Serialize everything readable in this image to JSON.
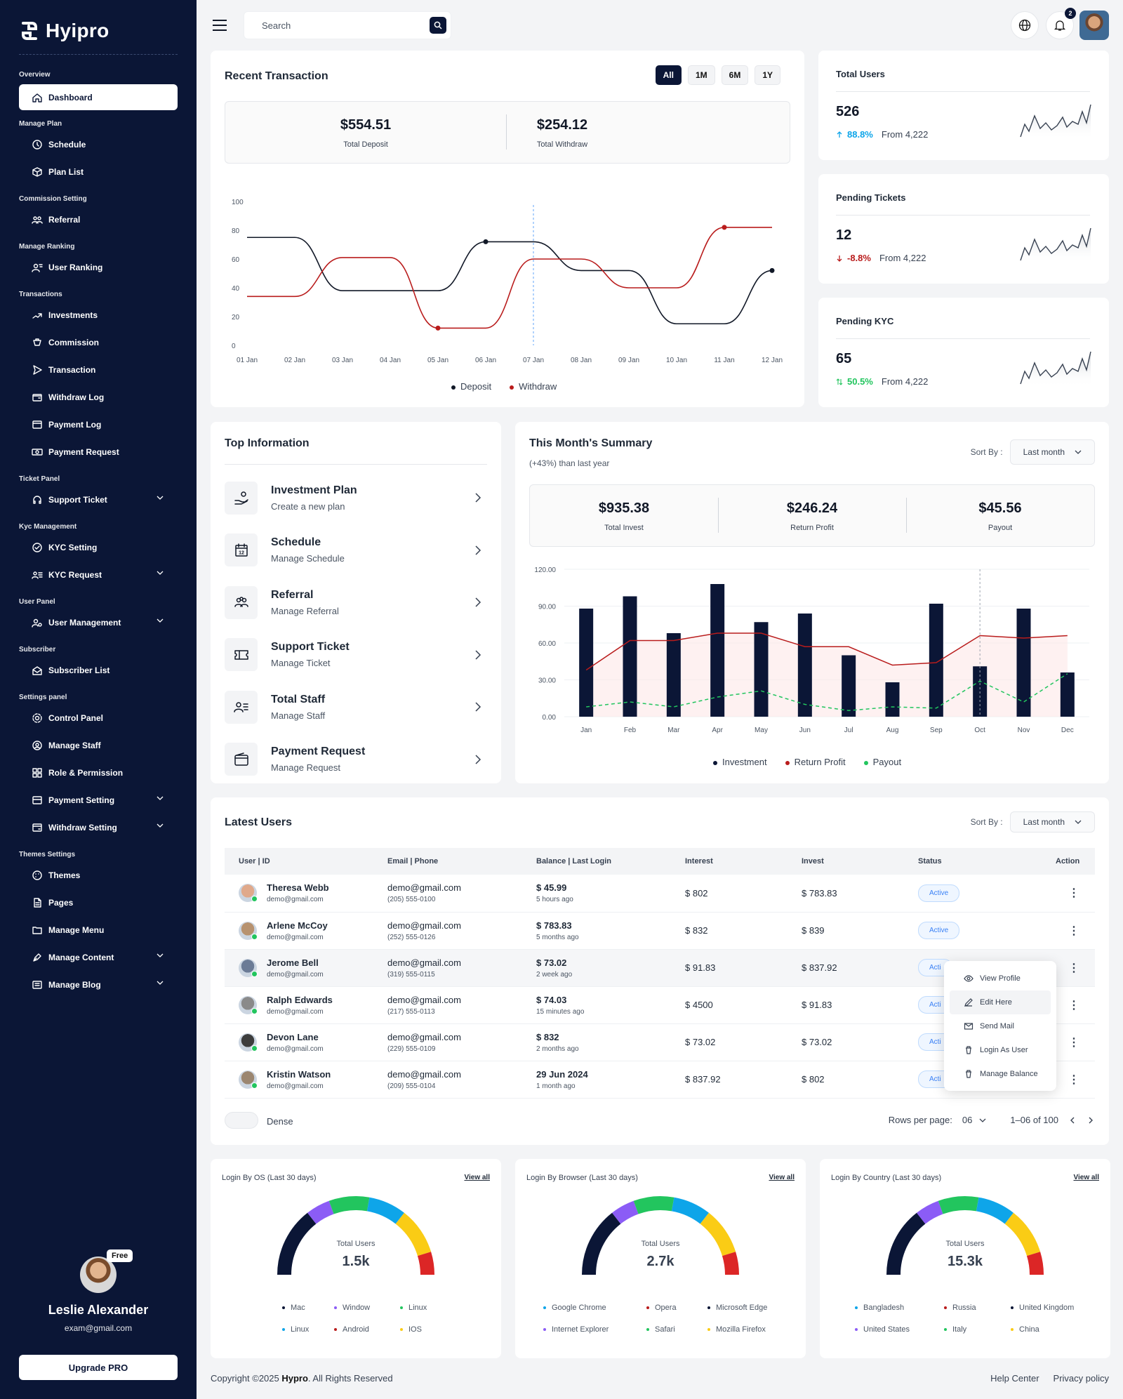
{
  "app": {
    "name": "Hyipro"
  },
  "sidebar": {
    "groups": [
      {
        "label": "Overview",
        "items": [
          {
            "label": "Dashboard",
            "icon": "home-icon",
            "active": true
          }
        ]
      },
      {
        "label": "Manage Plan",
        "items": [
          {
            "label": "Schedule",
            "icon": "clock-icon"
          },
          {
            "label": "Plan List",
            "icon": "box-icon"
          }
        ]
      },
      {
        "label": "Commission Setting",
        "items": [
          {
            "label": "Referral",
            "icon": "users-icon"
          }
        ]
      },
      {
        "label": "Manage Ranking",
        "items": [
          {
            "label": "User Ranking",
            "icon": "user-rank-icon"
          }
        ]
      },
      {
        "label": "Transactions",
        "items": [
          {
            "label": "Investments",
            "icon": "invest-icon"
          },
          {
            "label": "Commission",
            "icon": "commission-icon"
          },
          {
            "label": "Transaction",
            "icon": "send-icon"
          },
          {
            "label": "Withdraw Log",
            "icon": "wallet-icon"
          },
          {
            "label": "Payment Log",
            "icon": "card-icon"
          },
          {
            "label": "Payment Request",
            "icon": "cash-icon"
          }
        ]
      },
      {
        "label": "Ticket Panel",
        "items": [
          {
            "label": "Support Ticket",
            "icon": "headset-icon",
            "chevron": true
          }
        ]
      },
      {
        "label": "Kyc Management",
        "items": [
          {
            "label": "KYC Setting",
            "icon": "check-circle-icon"
          },
          {
            "label": "KYC Request",
            "icon": "list-user-icon",
            "chevron": true
          }
        ]
      },
      {
        "label": "User Panel",
        "items": [
          {
            "label": "User Management",
            "icon": "user-gear-icon",
            "chevron": true
          }
        ]
      },
      {
        "label": "Subscriber",
        "items": [
          {
            "label": "Subscriber List",
            "icon": "mail-open-icon"
          }
        ]
      },
      {
        "label": "Settings panel",
        "items": [
          {
            "label": "Control Panel",
            "icon": "gear-icon"
          },
          {
            "label": "Manage Staff",
            "icon": "staff-gear-icon"
          },
          {
            "label": "Role & Permission",
            "icon": "role-icon"
          },
          {
            "label": "Payment Setting",
            "icon": "payment-setting-icon",
            "chevron": true
          },
          {
            "label": "Withdraw Setting",
            "icon": "withdraw-setting-icon",
            "chevron": true
          }
        ]
      },
      {
        "label": "Themes Settings",
        "items": [
          {
            "label": "Themes",
            "icon": "palette-icon"
          },
          {
            "label": "Pages",
            "icon": "page-icon"
          },
          {
            "label": "Manage Menu",
            "icon": "folder-icon"
          },
          {
            "label": "Manage Content",
            "icon": "pen-tool-icon",
            "chevron": true
          },
          {
            "label": "Manage Blog",
            "icon": "blog-icon",
            "chevron": true
          }
        ]
      }
    ],
    "profile": {
      "name": "Leslie Alexander",
      "email": "exam@gmail.com",
      "badge": "Free"
    },
    "upgrade_label": "Upgrade PRO"
  },
  "topbar": {
    "search_placeholder": "Search",
    "notif_count": "2"
  },
  "recent_transaction": {
    "title": "Recent Transaction",
    "ranges": [
      "All",
      "1M",
      "6M",
      "1Y"
    ],
    "selected_range": "All",
    "total_deposit": "$554.51",
    "total_deposit_label": "Total Deposit",
    "total_withdraw": "$254.12",
    "total_withdraw_label": "Total Withdraw",
    "chart_data": {
      "type": "line",
      "x": [
        "01 Jan",
        "02 Jan",
        "03 Jan",
        "04 Jan",
        "05 Jan",
        "06 Jan",
        "07 Jan",
        "08 Jan",
        "09 Jan",
        "10 Jan",
        "11 Jan",
        "12 Jan"
      ],
      "yticks": [
        0,
        20,
        40,
        60,
        80,
        100
      ],
      "ylim": [
        0,
        100
      ],
      "series": [
        {
          "name": "Deposit",
          "color": "#111827",
          "values": [
            75,
            75,
            38,
            38,
            38,
            72,
            72,
            52,
            52,
            15,
            15,
            52
          ]
        },
        {
          "name": "Withdraw",
          "color": "#b91c1c",
          "values": [
            34,
            34,
            61,
            61,
            12,
            12,
            60,
            60,
            40,
            40,
            82,
            82
          ]
        }
      ],
      "legend": "bottom",
      "highlight_x": "07 Jan"
    }
  },
  "stats": [
    {
      "title": "Total Users",
      "value": "526",
      "pct": "88.8%",
      "from": "From 4,222",
      "trend": "up",
      "color": "#0ea5e9"
    },
    {
      "title": "Pending Tickets",
      "value": "12",
      "pct": "-8.8%",
      "from": "From 4,222",
      "trend": "down",
      "color": "#b91c1c"
    },
    {
      "title": "Pending KYC",
      "value": "65",
      "pct": "50.5%",
      "from": "From 4,222",
      "trend": "updown",
      "color": "#22c55e"
    }
  ],
  "top_info": {
    "title": "Top Information",
    "items": [
      {
        "title": "Investment Plan",
        "sub": "Create a new plan",
        "icon": "hand-coin-icon"
      },
      {
        "title": "Schedule",
        "sub": "Manage Schedule",
        "icon": "calendar-icon"
      },
      {
        "title": "Referral",
        "sub": "Manage Referral",
        "icon": "referral-icon"
      },
      {
        "title": "Support Ticket",
        "sub": "Manage Ticket",
        "icon": "ticket-icon"
      },
      {
        "title": "Total Staff",
        "sub": "Manage Staff",
        "icon": "staff-icon"
      },
      {
        "title": "Payment Request",
        "sub": "Manage Request",
        "icon": "wallet-icon"
      }
    ]
  },
  "summary": {
    "title": "This Month's Summary",
    "subtitle": "(+43%) than last year",
    "sort_label": "Sort By :",
    "sort_value": "Last month",
    "total_invest": "$935.38",
    "total_invest_label": "Total Invest",
    "return_profit": "$246.24",
    "return_profit_label": "Return Profit",
    "payout": "$45.56",
    "payout_label": "Payout",
    "chart_data": {
      "type": "bar",
      "categories": [
        "Jan",
        "Feb",
        "Mar",
        "Apr",
        "May",
        "Jun",
        "Jul",
        "Aug",
        "Sep",
        "Oct",
        "Nov",
        "Dec"
      ],
      "yticks": [
        "0.00",
        "30.00",
        "60.00",
        "90.00",
        "120.00"
      ],
      "ylim": [
        0,
        120
      ],
      "series": [
        {
          "name": "Investment",
          "color": "#0b1636",
          "type": "bar",
          "values": [
            88,
            98,
            68,
            108,
            77,
            84,
            50,
            28,
            92,
            41,
            88,
            36
          ]
        },
        {
          "name": "Return Profit",
          "color": "#b91c1c",
          "type": "area",
          "values": [
            38,
            62,
            62,
            68,
            68,
            57,
            57,
            42,
            44,
            66,
            64,
            66
          ]
        },
        {
          "name": "Payout",
          "color": "#22c55e",
          "type": "dashed-line",
          "values": [
            8,
            12,
            8,
            16,
            21,
            10,
            5,
            8,
            7,
            29,
            12,
            35
          ]
        }
      ],
      "legend": "bottom",
      "highlight_x": "Oct"
    }
  },
  "latest_users": {
    "title": "Latest Users",
    "sort_label": "Sort By :",
    "sort_value": "Last month",
    "columns": [
      "User | ID",
      "Email | Phone",
      "Balance | Last Login",
      "Interest",
      "Invest",
      "Status",
      "Action"
    ],
    "rows": [
      {
        "name": "Theresa Webb",
        "id": "demo@gmail.com",
        "email": "demo@gmail.com",
        "phone": "(205) 555-0100",
        "balance": "$ 45.99",
        "login": "5 hours ago",
        "interest": "$ 802",
        "invest": "$ 783.83",
        "status": "Active",
        "ava": "#e0a98b"
      },
      {
        "name": "Arlene McCoy",
        "id": "demo@gmail.com",
        "email": "demo@gmail.com",
        "phone": "(252) 555-0126",
        "balance": "$ 783.83",
        "login": "5 months ago",
        "interest": "$ 832",
        "invest": "$ 839",
        "status": "Active",
        "ava": "#b7926f"
      },
      {
        "name": "Jerome Bell",
        "id": "demo@gmail.com",
        "email": "demo@gmail.com",
        "phone": "(319) 555-0115",
        "balance": "$ 73.02",
        "login": "2 week ago",
        "interest": "$ 91.83",
        "invest": "$ 837.92",
        "status": "Acti",
        "ava": "#6b7b96"
      },
      {
        "name": "Ralph Edwards",
        "id": "demo@gmail.com",
        "email": "demo@gmail.com",
        "phone": "(217) 555-0113",
        "balance": "$ 74.03",
        "login": "15 minutes ago",
        "interest": "$ 4500",
        "invest": "$ 91.83",
        "status": "Acti",
        "ava": "#8a8a8a"
      },
      {
        "name": "Devon Lane",
        "id": "demo@gmail.com",
        "email": "demo@gmail.com",
        "phone": "(229) 555-0109",
        "balance": "$ 832",
        "login": "2 months ago",
        "interest": "$ 73.02",
        "invest": "$ 73.02",
        "status": "Acti",
        "ava": "#3d3d3d"
      },
      {
        "name": "Kristin Watson",
        "id": "demo@gmail.com",
        "email": "demo@gmail.com",
        "phone": "(209) 555-0104",
        "balance": "29 Jun 2024",
        "login": "1 month ago",
        "interest": "$ 837.92",
        "invest": "$ 802",
        "status": "Acti",
        "ava": "#9b8670"
      }
    ],
    "action_menu": [
      "View Profile",
      "Edit Here",
      "Send Mail",
      "Login As User",
      "Manage Balance"
    ],
    "dense_label": "Dense",
    "rows_per_page_label": "Rows per page:",
    "rows_per_page": "06",
    "range": "1–06 of 100"
  },
  "gauges": [
    {
      "title": "Login By OS (Last 30 days)",
      "view_all": "View all",
      "sub": "Total Users",
      "value": "1.5k",
      "legend": [
        {
          "label": "Mac",
          "color": "#0b1636"
        },
        {
          "label": "Window",
          "color": "#8b5cf6"
        },
        {
          "label": "Linux",
          "color": "#22c55e"
        },
        {
          "label": "Linux",
          "color": "#0ea5e9"
        },
        {
          "label": "Android",
          "color": "#b91c1c"
        },
        {
          "label": "IOS",
          "color": "#facc15"
        }
      ]
    },
    {
      "title": "Login By Browser (Last 30 days)",
      "view_all": "View all",
      "sub": "Total Users",
      "value": "2.7k",
      "legend": [
        {
          "label": "Google Chrome",
          "color": "#0ea5e9"
        },
        {
          "label": "Opera",
          "color": "#b91c1c"
        },
        {
          "label": "Microsoft Edge",
          "color": "#0b1636"
        },
        {
          "label": "Internet Explorer",
          "color": "#8b5cf6"
        },
        {
          "label": "Safari",
          "color": "#22c55e"
        },
        {
          "label": "Mozilla Firefox",
          "color": "#facc15"
        }
      ]
    },
    {
      "title": "Login By Country (Last 30 days)",
      "view_all": "View all",
      "sub": "Total Users",
      "value": "15.3k",
      "legend": [
        {
          "label": "Bangladesh",
          "color": "#0ea5e9"
        },
        {
          "label": "Russia",
          "color": "#b91c1c"
        },
        {
          "label": "United Kingdom",
          "color": "#0b1636"
        },
        {
          "label": "United States",
          "color": "#8b5cf6"
        },
        {
          "label": "Italy",
          "color": "#22c55e"
        },
        {
          "label": "China",
          "color": "#facc15"
        }
      ]
    }
  ],
  "gauge_colors": [
    "#0b1636",
    "#8b5cf6",
    "#22c55e",
    "#0ea5e9",
    "#facc15",
    "#dc2626"
  ],
  "footer": {
    "copyright_pre": "Copyright ©2025 ",
    "brand": "Hypro",
    "copyright_post": ". All Rights Reserved",
    "links": [
      "Help Center",
      "Privacy policy"
    ]
  }
}
